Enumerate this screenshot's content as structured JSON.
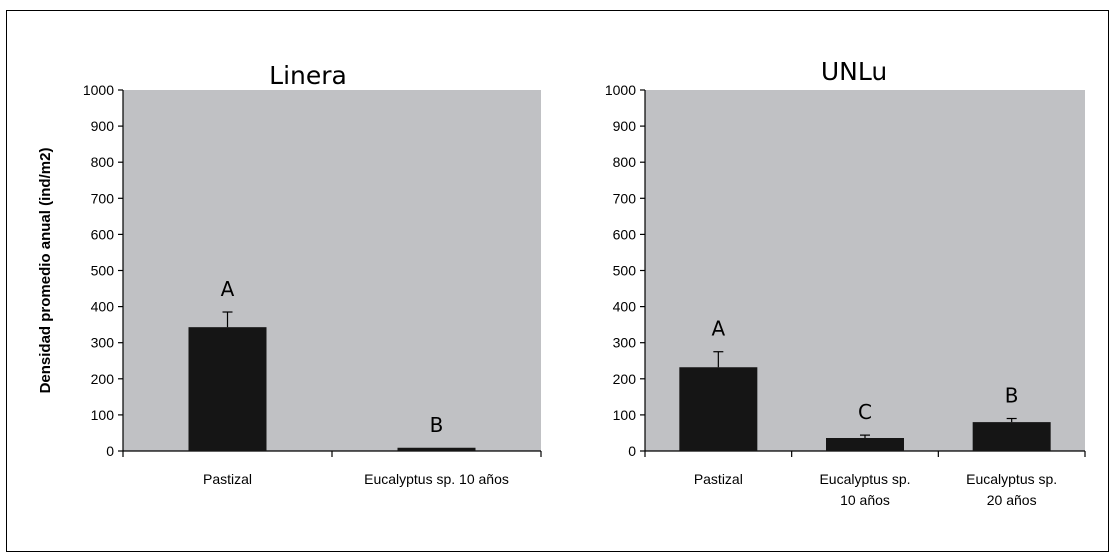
{
  "colors": {
    "plot_bg": "#c0c1c4",
    "bar": "#151515",
    "axis": "#000000"
  },
  "chart_data": [
    {
      "type": "bar",
      "title": "Linera",
      "ylabel": "Densidad promedio anual (ind/m2)",
      "xlabel": "",
      "ylim": [
        0,
        1000
      ],
      "yticks": [
        0,
        100,
        200,
        300,
        400,
        500,
        600,
        700,
        800,
        900,
        1000
      ],
      "grid": false,
      "categories": [
        [
          "Pastizal"
        ],
        [
          "Eucalyptus sp. 10 años"
        ]
      ],
      "values": [
        343,
        9
      ],
      "errors": [
        42,
        0
      ],
      "annotations": [
        "A",
        "B"
      ]
    },
    {
      "type": "bar",
      "title": "UNLu",
      "ylabel": "",
      "xlabel": "",
      "ylim": [
        0,
        1000
      ],
      "yticks": [
        0,
        100,
        200,
        300,
        400,
        500,
        600,
        700,
        800,
        900,
        1000
      ],
      "grid": false,
      "categories": [
        [
          "Pastizal"
        ],
        [
          "Eucalyptus sp.",
          "10 años"
        ],
        [
          "Eucalyptus sp.",
          "20 años"
        ]
      ],
      "values": [
        232,
        36,
        80
      ],
      "errors": [
        43,
        8,
        10
      ],
      "annotations": [
        "A",
        "C",
        "B"
      ]
    }
  ]
}
